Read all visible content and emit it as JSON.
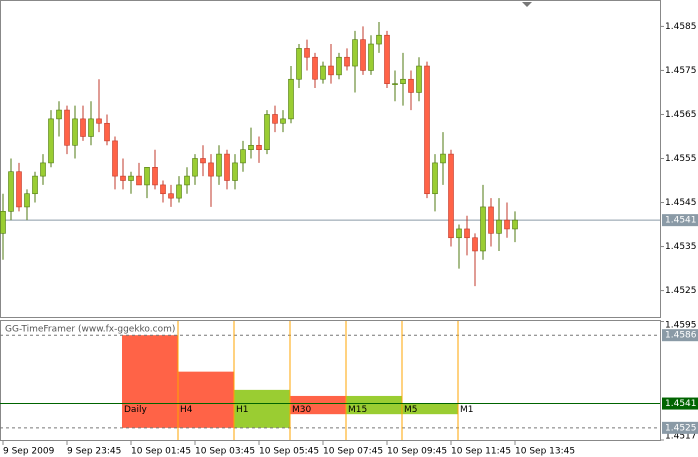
{
  "chart_data": [
    {
      "type": "candlestick",
      "open": [
        1.4538,
        1.4543,
        1.4552,
        1.4544,
        1.4547,
        1.4551,
        1.4554,
        1.4564,
        1.4566,
        1.4558,
        1.4564,
        1.456,
        1.4564,
        1.4563,
        1.4559,
        1.4551,
        1.455,
        1.4551,
        1.4549,
        1.4553,
        1.4549,
        1.4547,
        1.4546,
        1.4549,
        1.4551,
        1.4555,
        1.4554,
        1.4551,
        1.4556,
        1.455,
        1.4554,
        1.4557,
        1.4558,
        1.4557,
        1.4565,
        1.4563,
        1.4564,
        1.4573,
        1.458,
        1.4578,
        1.4573,
        1.4576,
        1.4574,
        1.4578,
        1.4576,
        1.4582,
        1.4575,
        1.4581,
        1.4583,
        1.4572,
        1.4572,
        1.4573,
        1.457,
        1.4576,
        1.4547,
        1.4554,
        1.4556,
        1.4537,
        1.4539,
        1.4537,
        1.4534,
        1.4544,
        1.4538,
        1.4541,
        1.4539
      ],
      "high": [
        1.4547,
        1.4555,
        1.4554,
        1.4548,
        1.4552,
        1.4556,
        1.4566,
        1.4568,
        1.4567,
        1.4567,
        1.4567,
        1.4568,
        1.4573,
        1.4565,
        1.456,
        1.4555,
        1.4552,
        1.4554,
        1.4553,
        1.4557,
        1.455,
        1.4549,
        1.4551,
        1.4553,
        1.4556,
        1.4558,
        1.4556,
        1.4558,
        1.4557,
        1.4556,
        1.4559,
        1.4562,
        1.456,
        1.4566,
        1.4567,
        1.4566,
        1.4576,
        1.4581,
        1.4582,
        1.4579,
        1.4577,
        1.4581,
        1.4579,
        1.458,
        1.4584,
        1.4585,
        1.4583,
        1.4586,
        1.4584,
        1.4575,
        1.4579,
        1.4575,
        1.4578,
        1.4577,
        1.4556,
        1.4561,
        1.4557,
        1.454,
        1.4542,
        1.4538,
        1.4549,
        1.4546,
        1.4546,
        1.4545,
        1.4543
      ],
      "low": [
        1.4532,
        1.4541,
        1.4543,
        1.4541,
        1.4545,
        1.4549,
        1.4553,
        1.456,
        1.4556,
        1.4555,
        1.4559,
        1.4558,
        1.4561,
        1.4558,
        1.4548,
        1.4548,
        1.4547,
        1.4549,
        1.4546,
        1.4548,
        1.4545,
        1.4544,
        1.4545,
        1.4547,
        1.4549,
        1.4551,
        1.4544,
        1.4549,
        1.4548,
        1.4548,
        1.4552,
        1.4555,
        1.4554,
        1.4556,
        1.4561,
        1.4561,
        1.4563,
        1.4571,
        1.4575,
        1.4571,
        1.4572,
        1.4572,
        1.4573,
        1.4575,
        1.457,
        1.4574,
        1.4574,
        1.4579,
        1.4571,
        1.4568,
        1.4567,
        1.4566,
        1.4568,
        1.4546,
        1.4543,
        1.4549,
        1.4535,
        1.453,
        1.4533,
        1.4526,
        1.4532,
        1.4535,
        1.4534,
        1.4537,
        1.4536
      ],
      "close": [
        1.4543,
        1.4552,
        1.4544,
        1.4547,
        1.4551,
        1.4554,
        1.4564,
        1.4566,
        1.4558,
        1.4564,
        1.456,
        1.4564,
        1.4563,
        1.4559,
        1.4551,
        1.455,
        1.4551,
        1.4549,
        1.4553,
        1.4549,
        1.4547,
        1.4546,
        1.4549,
        1.4551,
        1.4555,
        1.4554,
        1.4551,
        1.4556,
        1.455,
        1.4554,
        1.4557,
        1.4558,
        1.4557,
        1.4565,
        1.4563,
        1.4564,
        1.4573,
        1.458,
        1.4578,
        1.4573,
        1.4576,
        1.4574,
        1.4578,
        1.4576,
        1.4582,
        1.4575,
        1.4581,
        1.4583,
        1.4572,
        1.4572,
        1.4573,
        1.457,
        1.4576,
        1.4547,
        1.4554,
        1.4556,
        1.4537,
        1.4539,
        1.4537,
        1.4534,
        1.4544,
        1.4538,
        1.4541,
        1.4539,
        1.4541
      ],
      "up_color": "#9acd32",
      "down_color": "#ff6347",
      "ylim": [
        1.4519,
        1.4591
      ],
      "yticks": [
        1.4525,
        1.4535,
        1.4545,
        1.4555,
        1.4565,
        1.4575,
        1.4585
      ],
      "last_price": 1.4541,
      "xticks": [
        {
          "value": 0,
          "label": "9 Sep 2009"
        },
        {
          "value": 8,
          "label": "9 Sep 23:45"
        },
        {
          "value": 16,
          "label": "10 Sep 01:45"
        },
        {
          "value": 24,
          "label": "10 Sep 03:45"
        },
        {
          "value": 32,
          "label": "10 Sep 05:45"
        },
        {
          "value": 40,
          "label": "10 Sep 07:45"
        },
        {
          "value": 48,
          "label": "10 Sep 09:45"
        },
        {
          "value": 56,
          "label": "10 Sep 11:45"
        },
        {
          "value": 64,
          "label": "10 Sep 13:45"
        }
      ]
    },
    {
      "type": "range_bars",
      "title": "GG-TimeFramer (www.fx-ggekko.com)",
      "categories": [
        "Daily",
        "H4",
        "H1",
        "M30",
        "M15",
        "M5",
        "M1"
      ],
      "high": [
        1.4586,
        1.4562,
        1.455,
        1.4546,
        1.4546,
        1.4541,
        null
      ],
      "low": [
        1.4525,
        1.4525,
        1.4525,
        1.4534,
        1.4534,
        1.4534,
        null
      ],
      "colors": [
        "#ff6347",
        "#ff6347",
        "#9acd32",
        "#ff6347",
        "#9acd32",
        "#9acd32",
        null
      ],
      "ylim": [
        1.4517,
        1.4596
      ],
      "yticks": [
        1.4595,
        1.4517
      ],
      "levels": [
        1.4586,
        1.4525
      ],
      "last_price": 1.4541,
      "line_color": "#006400",
      "divider_color": "#ffa500"
    }
  ]
}
